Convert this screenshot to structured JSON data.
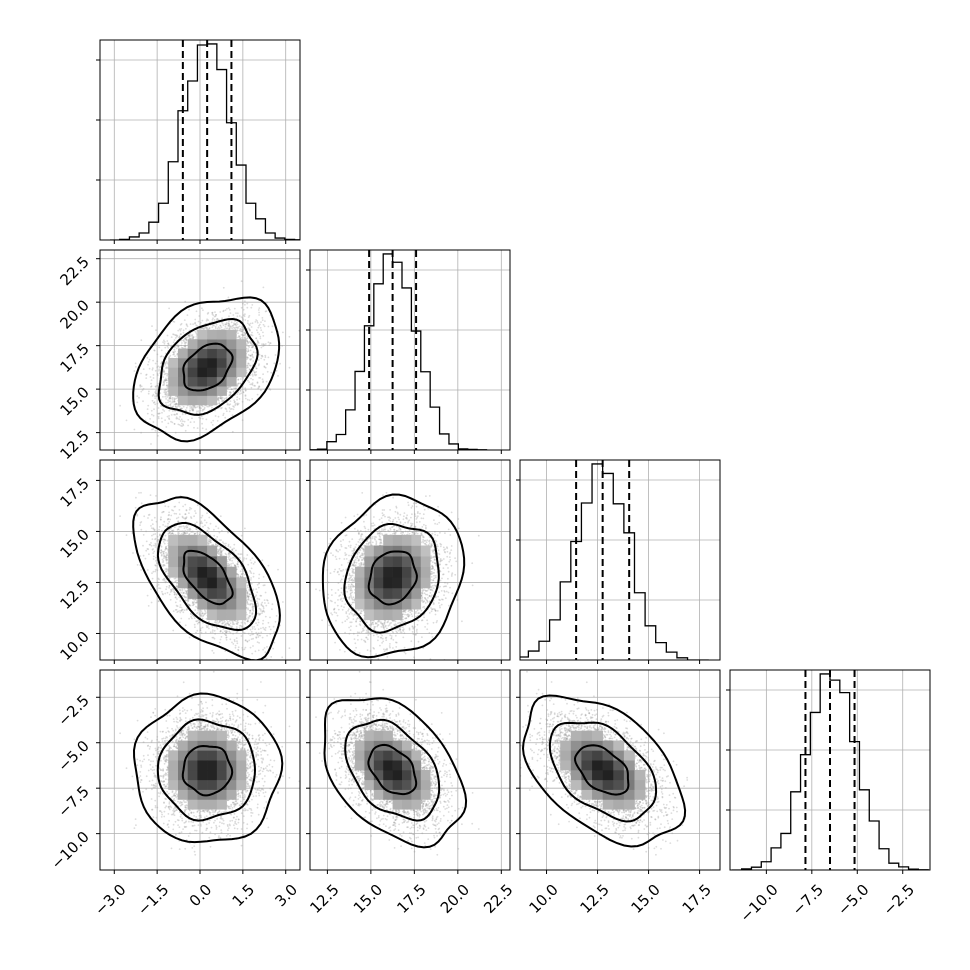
{
  "chart_data": {
    "type": "corner",
    "parameters": 4,
    "samples": {
      "mean": [
        0.25,
        16.25,
        12.75,
        -6.5
      ],
      "std": [
        0.85,
        1.35,
        1.3,
        1.35
      ],
      "correlation": [
        [
          1.0,
          0.35,
          -0.55,
          0.0
        ],
        [
          0.35,
          1.0,
          0.15,
          -0.4
        ],
        [
          -0.55,
          0.15,
          1.0,
          -0.45
        ],
        [
          0.0,
          -0.4,
          -0.45,
          1.0
        ]
      ]
    },
    "quantiles": [
      [
        -0.6,
        0.25,
        1.1
      ],
      [
        14.9,
        16.25,
        17.6
      ],
      [
        11.45,
        12.75,
        14.05
      ],
      [
        -7.85,
        -6.5,
        -5.15
      ]
    ],
    "axes": [
      {
        "range": [
          -3.5,
          3.5
        ],
        "ticks": [
          -3.0,
          -1.5,
          0.0,
          1.5,
          3.0
        ],
        "tick_labels": [
          "−3.0",
          "−1.5",
          "0.0",
          "1.5",
          "3.0"
        ]
      },
      {
        "range": [
          11.5,
          23.0
        ],
        "ticks": [
          12.5,
          15.0,
          17.5,
          20.0,
          22.5
        ],
        "tick_labels": [
          "12.5",
          "15.0",
          "17.5",
          "20.0",
          "22.5"
        ]
      },
      {
        "range": [
          8.7,
          18.5
        ],
        "ticks": [
          10.0,
          12.5,
          15.0,
          17.5
        ],
        "tick_labels": [
          "10.0",
          "12.5",
          "15.0",
          "17.5"
        ]
      },
      {
        "range": [
          -12.0,
          -1.0
        ],
        "ticks": [
          -10.0,
          -7.5,
          -5.0,
          -2.5
        ],
        "tick_labels": [
          "−10.0",
          "−7.5",
          "−5.0",
          "−2.5"
        ]
      }
    ],
    "histogram_bins": 20,
    "contour_levels": [
      0.393,
      0.865,
      0.989
    ],
    "grid": true,
    "colors": {
      "scatter": "#9a9a9a",
      "lines": "#000000",
      "density_light": "#ececec",
      "density_dark": "#1a1a1a"
    }
  }
}
